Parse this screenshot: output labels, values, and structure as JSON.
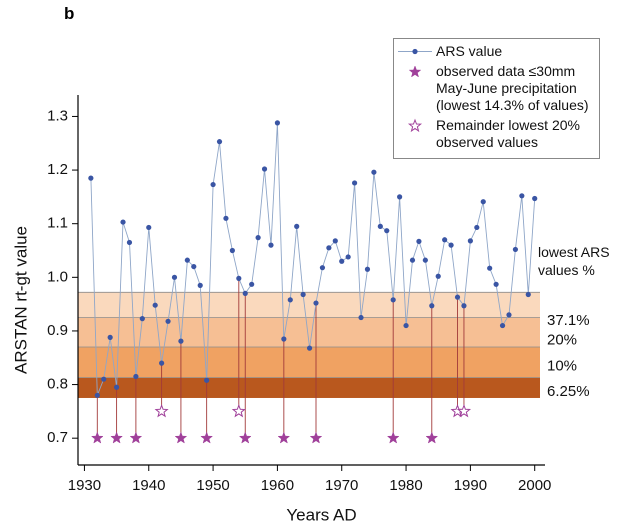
{
  "chart_data": {
    "type": "line",
    "panel": "b",
    "x_label": "Years AD",
    "y_label": "ARSTAN rt-gt value",
    "xlim": [
      1929,
      2001.6
    ],
    "ylim": [
      0.65,
      1.34
    ],
    "xticks": [
      1930,
      1940,
      1950,
      1960,
      1970,
      1980,
      1990,
      2000
    ],
    "yticks": [
      0.7,
      0.8,
      0.9,
      {
        "value": 1,
        "label": "1.0"
      },
      1.1,
      1.2,
      1.3
    ],
    "band_title": "lowest ARS values %",
    "bands": [
      {
        "label": "37.1%",
        "from": 0.925,
        "to": 0.972,
        "color": "#fad9bd"
      },
      {
        "label": "20%",
        "from": 0.87,
        "to": 0.925,
        "color": "#f6bf94"
      },
      {
        "label": "10%",
        "from": 0.813,
        "to": 0.87,
        "color": "#f0a262"
      },
      {
        "label": "6.25%",
        "from": 0.775,
        "to": 0.813,
        "color": "#b9581e"
      }
    ],
    "series": [
      {
        "name": "ARS value",
        "color": "#3a55a4",
        "x": [
          1931,
          1932,
          1933,
          1934,
          1935,
          1936,
          1937,
          1938,
          1939,
          1940,
          1941,
          1942,
          1943,
          1944,
          1945,
          1946,
          1947,
          1948,
          1949,
          1950,
          1951,
          1952,
          1953,
          1954,
          1955,
          1956,
          1957,
          1958,
          1959,
          1960,
          1961,
          1962,
          1963,
          1964,
          1965,
          1966,
          1967,
          1968,
          1969,
          1970,
          1971,
          1972,
          1973,
          1974,
          1975,
          1976,
          1977,
          1978,
          1979,
          1980,
          1981,
          1982,
          1983,
          1984,
          1985,
          1986,
          1987,
          1988,
          1989,
          1990,
          1991,
          1992,
          1993,
          1994,
          1995,
          1996,
          1997,
          1998,
          1999,
          2000
        ],
        "values": [
          1.185,
          0.78,
          0.81,
          0.888,
          0.795,
          1.103,
          1.065,
          0.815,
          0.923,
          1.093,
          0.948,
          0.84,
          0.918,
          1.0,
          0.881,
          1.032,
          1.02,
          0.985,
          0.808,
          1.173,
          1.253,
          1.11,
          1.05,
          0.998,
          0.97,
          0.987,
          1.074,
          1.202,
          1.06,
          1.288,
          0.885,
          0.958,
          1.095,
          0.968,
          0.868,
          0.952,
          1.018,
          1.055,
          1.068,
          1.03,
          1.038,
          1.176,
          0.925,
          1.015,
          1.196,
          1.095,
          1.087,
          0.958,
          1.15,
          0.91,
          1.032,
          1.067,
          1.032,
          0.947,
          1.002,
          1.07,
          1.06,
          0.963,
          0.947,
          1.068,
          1.093,
          1.141,
          1.017,
          0.987,
          0.91,
          0.93,
          1.052,
          1.152,
          0.968,
          1.147
        ]
      },
      {
        "name": "observed data ≤30mm May-June precipitation (lowest 14.3% of values)",
        "color": "#a0409a",
        "marker": "filled-star",
        "x": [
          1932,
          1935,
          1938,
          1945,
          1949,
          1955,
          1961,
          1966,
          1978,
          1984
        ],
        "values": [
          0.7,
          0.7,
          0.7,
          0.7,
          0.7,
          0.7,
          0.7,
          0.7,
          0.7,
          0.7
        ]
      },
      {
        "name": "Remainder lowest 20% observed values",
        "color": "#a0409a",
        "marker": "open-star",
        "x": [
          1942,
          1954,
          1988,
          1989
        ],
        "values": [
          0.75,
          0.75,
          0.75,
          0.75
        ]
      }
    ]
  }
}
